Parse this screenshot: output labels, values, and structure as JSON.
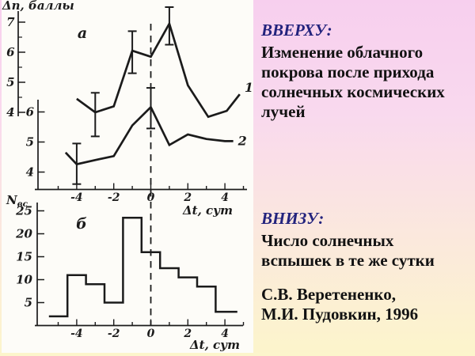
{
  "slide": {
    "background_top_color": "#f7cfee",
    "background_bottom_color": "#fcf5cb",
    "panel_color": "#fdfcf8",
    "ink_color": "#1b1b1b",
    "heading_color": "#23237d",
    "body_color": "#121212"
  },
  "captions": {
    "top": {
      "heading": "ВВЕРХУ:",
      "line1": "Изменение облачного",
      "line2": "покрова после прихода",
      "line3": "солнечных космических",
      "line4": "лучей"
    },
    "bottom": {
      "heading": "ВНИЗУ:",
      "line1": "Число солнечных",
      "line2": "вспышек в те же сутки"
    },
    "credit": {
      "line1": "С.В. Веретененко,",
      "line2": "М.И. Пудовкин, 1996"
    }
  },
  "chart_data": [
    {
      "type": "line",
      "panel_label": "а",
      "ylabel": "Δп, баллы",
      "xlabel": "Δt, сут",
      "x_range": [
        -5,
        5
      ],
      "x_tick_labels": [
        -4,
        -2,
        0,
        2,
        4
      ],
      "event_marker_x": 0,
      "axes": {
        "outer": {
          "for_series": "1",
          "ticks": [
            4,
            5,
            6,
            7
          ],
          "ylim": [
            4,
            7
          ]
        },
        "inner": {
          "for_series": "2",
          "ticks": [
            4,
            5,
            6
          ],
          "ylim": [
            4,
            6
          ]
        }
      },
      "series": [
        {
          "name": "1",
          "axis": "outer",
          "points": [
            [
              -4,
              4.45
            ],
            [
              -3,
              4.0
            ],
            [
              -2,
              4.2
            ],
            [
              -1,
              6.05
            ],
            [
              0,
              5.85
            ],
            [
              1,
              6.95
            ],
            [
              2,
              4.9
            ],
            [
              3.1,
              3.85
            ],
            [
              4.1,
              4.05
            ],
            [
              4.8,
              4.6
            ]
          ],
          "error_bars": [
            {
              "x": -3,
              "y": 4.0,
              "lo": 3.2,
              "hi": 4.65
            },
            {
              "x": -1,
              "y": 6.05,
              "lo": 5.3,
              "hi": 6.7
            },
            {
              "x": 1,
              "y": 6.95,
              "lo": 6.25,
              "hi": 7.5
            }
          ]
        },
        {
          "name": "2",
          "axis": "inner",
          "points": [
            [
              -4.6,
              4.65
            ],
            [
              -4,
              4.26
            ],
            [
              -3,
              4.4
            ],
            [
              -2,
              4.53
            ],
            [
              -1,
              5.55
            ],
            [
              0,
              6.16
            ],
            [
              1,
              4.9
            ],
            [
              2,
              5.25
            ],
            [
              3,
              5.1
            ],
            [
              4,
              5.03
            ],
            [
              4.45,
              5.03
            ]
          ],
          "error_bars": [
            {
              "x": -4,
              "y": 4.26,
              "lo": 3.6,
              "hi": 4.95
            },
            {
              "x": 0,
              "y": 6.16,
              "lo": 5.45,
              "hi": 6.8
            }
          ]
        }
      ]
    },
    {
      "type": "bar",
      "panel_label": "б",
      "ylabel": "Nвс",
      "ylabel_main": "N",
      "ylabel_sub": "вс",
      "xlabel": "Δt, сут",
      "categories": [
        -5,
        -4,
        -3,
        -2,
        -1,
        0,
        1,
        2,
        3,
        4
      ],
      "values": [
        2,
        11,
        9,
        5,
        23.5,
        16,
        12.5,
        10.5,
        8.5,
        3
      ],
      "ylim": [
        0,
        25
      ],
      "y_ticks": [
        5,
        10,
        15,
        20,
        25
      ],
      "x_tick_labels": [
        -4,
        -2,
        0,
        2,
        4
      ],
      "event_marker_x": 0
    }
  ]
}
